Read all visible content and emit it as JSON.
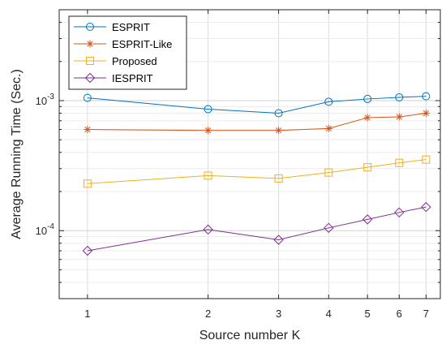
{
  "chart_data": {
    "type": "line",
    "xlabel": "Source number K",
    "ylabel": "Average Running Time (Sec.)",
    "x": [
      1,
      2,
      3,
      4,
      5,
      6,
      7
    ],
    "x_scale": "log",
    "y_scale": "log",
    "xlim": [
      0.85,
      7.6
    ],
    "ylim": [
      3e-05,
      0.005
    ],
    "grid": true,
    "legend_position": "top-left",
    "y_ticks": [
      {
        "value": 0.001,
        "base": "10",
        "exp": "-3"
      },
      {
        "value": 0.0001,
        "base": "10",
        "exp": "-4"
      }
    ],
    "series": [
      {
        "name": "ESPRIT",
        "color": "#0072BD",
        "marker": "circle",
        "values": [
          0.00105,
          0.00086,
          0.0008,
          0.00098,
          0.00103,
          0.00106,
          0.00108
        ]
      },
      {
        "name": "ESPRIT-Like",
        "color": "#D95319",
        "marker": "asterisk",
        "values": [
          0.0006,
          0.00059,
          0.00059,
          0.00061,
          0.00074,
          0.00075,
          0.0008
        ]
      },
      {
        "name": "Proposed",
        "color": "#EDB120",
        "marker": "square",
        "values": [
          0.00023,
          0.000265,
          0.000252,
          0.00028,
          0.000307,
          0.000332,
          0.000352
        ]
      },
      {
        "name": "IESPRIT",
        "color": "#7E2F8E",
        "marker": "diamond",
        "values": [
          7e-05,
          0.000102,
          8.5e-05,
          0.000105,
          0.000122,
          0.000138,
          0.000152
        ]
      }
    ]
  }
}
